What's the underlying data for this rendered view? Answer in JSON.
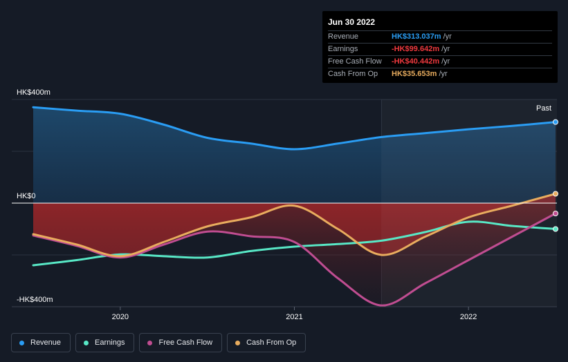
{
  "chart_data": {
    "type": "area",
    "unit_prefix": "HK$",
    "y_ticks": [
      {
        "value": 400,
        "label": "HK$400m"
      },
      {
        "value": 0,
        "label": "HK$0"
      },
      {
        "value": -400,
        "label": "-HK$400m"
      }
    ],
    "ylim": [
      -400,
      400
    ],
    "xlim": [
      2019.5,
      2022.5
    ],
    "x_ticks": [
      {
        "value": 2020,
        "label": "2020"
      },
      {
        "value": 2021,
        "label": "2021"
      },
      {
        "value": 2022,
        "label": "2022"
      }
    ],
    "past_from": 2021.5,
    "past_label": "Past",
    "grid": true,
    "series": [
      {
        "name": "Revenue",
        "color": "#2a9df4",
        "fill": "#1c4566",
        "x": [
          2019.5,
          2019.75,
          2020,
          2020.25,
          2020.5,
          2020.75,
          2021,
          2021.25,
          2021.5,
          2021.75,
          2022,
          2022.25,
          2022.5
        ],
        "y": [
          370,
          357,
          345,
          303,
          252,
          230,
          208,
          230,
          255,
          270,
          285,
          298,
          313
        ]
      },
      {
        "name": "Earnings",
        "color": "#58e8c6",
        "x": [
          2019.5,
          2019.75,
          2020,
          2020.25,
          2020.5,
          2020.75,
          2021,
          2021.25,
          2021.5,
          2021.75,
          2022,
          2022.25,
          2022.5
        ],
        "y": [
          -240,
          -220,
          -198,
          -205,
          -210,
          -185,
          -168,
          -158,
          -145,
          -112,
          -72,
          -88,
          -100
        ]
      },
      {
        "name": "Free Cash Flow",
        "color": "#c04d91",
        "x": [
          2019.5,
          2019.75,
          2020,
          2020.25,
          2020.5,
          2020.75,
          2021,
          2021.25,
          2021.5,
          2021.75,
          2022,
          2022.25,
          2022.5
        ],
        "y": [
          -125,
          -165,
          -210,
          -160,
          -110,
          -128,
          -150,
          -290,
          -395,
          -310,
          -220,
          -130,
          -40
        ]
      },
      {
        "name": "Cash From Op",
        "color": "#e8ac5e",
        "x": [
          2019.5,
          2019.75,
          2020,
          2020.25,
          2020.5,
          2020.75,
          2021,
          2021.25,
          2021.5,
          2021.75,
          2022,
          2022.25,
          2022.5
        ],
        "y": [
          -120,
          -160,
          -205,
          -150,
          -90,
          -55,
          -10,
          -100,
          -200,
          -130,
          -55,
          -10,
          36
        ]
      }
    ]
  },
  "tooltip": {
    "date": "Jun 30 2022",
    "rows": [
      {
        "label": "Revenue",
        "value": "HK$313.037m",
        "unit": "/yr",
        "color": "#2a9df4"
      },
      {
        "label": "Earnings",
        "value": "-HK$99.642m",
        "unit": "/yr",
        "color": "#f0393e"
      },
      {
        "label": "Free Cash Flow",
        "value": "-HK$40.442m",
        "unit": "/yr",
        "color": "#f0393e"
      },
      {
        "label": "Cash From Op",
        "value": "HK$35.653m",
        "unit": "/yr",
        "color": "#e8ac5e"
      }
    ]
  },
  "legend": [
    {
      "label": "Revenue",
      "color": "#2a9df4"
    },
    {
      "label": "Earnings",
      "color": "#58e8c6"
    },
    {
      "label": "Free Cash Flow",
      "color": "#c04d91"
    },
    {
      "label": "Cash From Op",
      "color": "#e8ac5e"
    }
  ]
}
